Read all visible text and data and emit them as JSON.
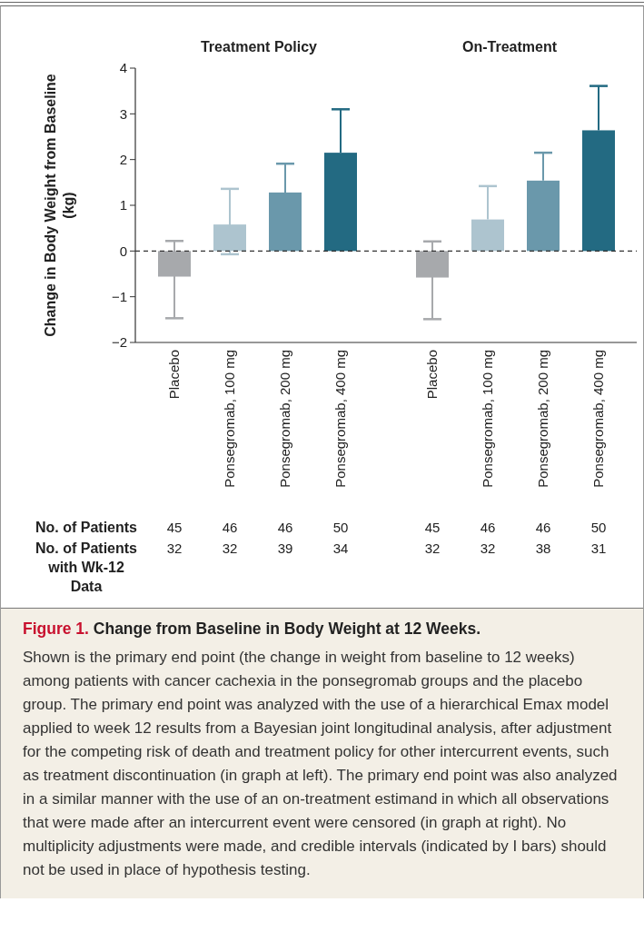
{
  "chart_data": [
    {
      "type": "bar",
      "title": "Treatment Policy",
      "ylabel": "Change in Body Weight from Baseline\n(kg)",
      "categories": [
        "Placebo",
        "Ponsegromab, 100 mg",
        "Ponsegromab, 200 mg",
        "Ponsegromab, 400 mg"
      ],
      "values": [
        -0.56,
        0.58,
        1.28,
        2.15
      ],
      "colors": [
        "#a7a9ac",
        "#adc4cf",
        "#6a98ab",
        "#236a82"
      ],
      "errors": [
        [
          -1.47,
          0.22
        ],
        [
          -0.07,
          1.36
        ],
        [
          1.28,
          1.91
        ],
        [
          2.15,
          3.1
        ]
      ],
      "ylim": [
        -2,
        4
      ],
      "yticks": [
        {
          "value": -2,
          "label": "−2"
        },
        {
          "value": -1,
          "label": "−1"
        },
        0,
        1,
        2,
        3,
        4
      ],
      "ref_lines": [
        {
          "axis": "y",
          "value": 0,
          "color": "#333333",
          "line_style": "dashed"
        }
      ],
      "annotations": [
        "No. of Patients",
        "No. of Patients\nwith Wk-12\nData",
        "45",
        "46",
        "46",
        "50",
        "32",
        "32",
        "39",
        "34",
        "Figure 1.",
        "Change from Baseline in Body Weight at 12 Weeks.",
        "Shown is the primary end point (the change in weight from baseline to 12 weeks) among patients with cancer cachexia in the ponsegromab groups and the placebo group. The primary end point was analyzed with the use of a hierarchical Emax model applied to week 12 results from a Bayesian joint longitudinal analysis, after adjustment for the competing risk of death and treatment policy for other intercurrent events, such as treatment discontinuation (in graph at left). The primary end point was also analyzed in a similar manner with the use of an on-treatment estimand in which all observations that were made after an intercurrent event were censored (in graph at right). No multiplicity adjustments were made, and credible intervals (indicated by I bars) should not be used in place of hypothesis testing."
      ]
    },
    {
      "type": "bar",
      "title": "On-Treatment",
      "categories": [
        "Placebo",
        "Ponsegromab, 100 mg",
        "Ponsegromab, 200 mg",
        "Ponsegromab, 400 mg"
      ],
      "values": [
        -0.58,
        0.69,
        1.54,
        2.64
      ],
      "colors": [
        "#a7a9ac",
        "#adc4cf",
        "#6a98ab",
        "#236a82"
      ],
      "errors": [
        [
          -1.49,
          0.21
        ],
        [
          0.69,
          1.42
        ],
        [
          1.54,
          2.15
        ],
        [
          2.64,
          3.61
        ]
      ],
      "ylim": [
        -2,
        4
      ],
      "tick_labels": "x",
      "ref_lines": [
        {
          "axis": "y",
          "value": 0,
          "color": "#333333",
          "line_style": "dashed"
        }
      ],
      "annotations": [
        "45",
        "46",
        "46",
        "50",
        "32",
        "32",
        "38",
        "31"
      ]
    }
  ]
}
